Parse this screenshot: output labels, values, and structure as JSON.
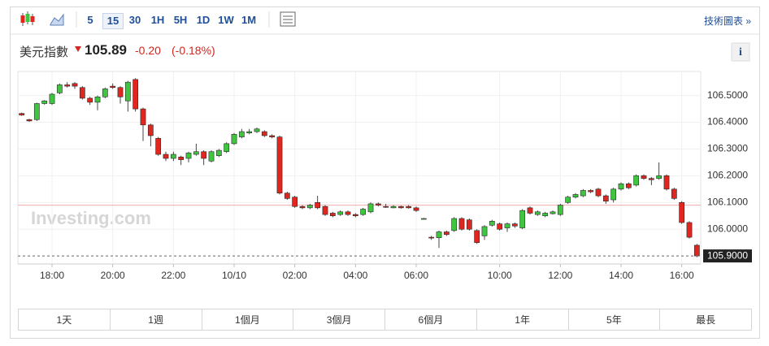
{
  "toolbar": {
    "intervals": [
      "5",
      "15",
      "30",
      "1H",
      "5H",
      "1D",
      "1W",
      "1M"
    ],
    "selected": "15",
    "chart_link": "技術圖表 »"
  },
  "header": {
    "name": "美元指數",
    "price": "105.89",
    "change": "-0.20",
    "change_percent": "(-0.18%)"
  },
  "chart_data": {
    "type": "candlestick",
    "watermark": "Investing.com",
    "categories": [
      null,
      null,
      null,
      null,
      "18:00",
      null,
      null,
      null,
      null,
      null,
      null,
      null,
      "20:00",
      null,
      null,
      null,
      null,
      null,
      null,
      null,
      "22:00",
      null,
      null,
      null,
      null,
      null,
      null,
      null,
      "10/10",
      null,
      null,
      null,
      null,
      null,
      null,
      null,
      "02:00",
      null,
      null,
      null,
      null,
      null,
      null,
      null,
      "04:00",
      null,
      null,
      null,
      null,
      null,
      null,
      null,
      "06:00",
      null,
      null,
      null,
      null,
      null,
      null,
      null,
      null,
      null,
      null,
      "10:00",
      null,
      null,
      null,
      null,
      null,
      null,
      null,
      "12:00",
      null,
      null,
      null,
      null,
      null,
      null,
      null,
      "14:00",
      null,
      null,
      null,
      null,
      null,
      null,
      null,
      "16:00",
      null,
      null
    ],
    "open": [
      106.433,
      106.41,
      106.41,
      106.47,
      106.47,
      106.51,
      106.54,
      106.545,
      106.53,
      106.49,
      106.475,
      106.495,
      106.535,
      106.53,
      106.48,
      106.56,
      106.45,
      106.39,
      106.34,
      106.28,
      106.265,
      106.27,
      106.265,
      106.28,
      106.29,
      106.255,
      106.275,
      106.29,
      106.32,
      106.345,
      106.36,
      106.365,
      106.365,
      106.35,
      106.345,
      106.135,
      106.12,
      106.085,
      106.08,
      106.1,
      106.085,
      106.06,
      106.055,
      106.065,
      106.055,
      106.055,
      106.065,
      106.095,
      106.085,
      106.08,
      106.085,
      106.085,
      106.08,
      106.04,
      105.97,
      105.968,
      105.99,
      105.995,
      106.04,
      106.035,
      105.995,
      105.975,
      106.015,
      106.02,
      106.005,
      106.02,
      106.005,
      106.08,
      106.055,
      106.05,
      106.058,
      106.055,
      106.1,
      106.12,
      106.125,
      106.145,
      106.15,
      106.125,
      106.11,
      106.15,
      106.17,
      106.165,
      106.2,
      106.19,
      106.19,
      106.2,
      106.15,
      106.1,
      106.025,
      105.94
    ],
    "high": [
      106.436,
      106.413,
      106.473,
      106.483,
      106.51,
      106.545,
      106.55,
      106.55,
      106.535,
      106.495,
      106.5,
      106.53,
      106.545,
      106.535,
      106.555,
      106.565,
      106.455,
      106.395,
      106.345,
      106.29,
      106.29,
      106.275,
      106.29,
      106.32,
      106.295,
      106.295,
      106.3,
      106.325,
      106.36,
      106.375,
      106.375,
      106.38,
      106.37,
      106.355,
      106.35,
      106.14,
      106.125,
      106.09,
      106.095,
      106.125,
      106.09,
      106.065,
      106.07,
      106.07,
      106.06,
      106.08,
      106.1,
      106.1,
      106.095,
      106.09,
      106.088,
      106.09,
      106.085,
      106.042,
      105.975,
      105.995,
      105.995,
      106.045,
      106.045,
      106.04,
      106.0,
      106.015,
      106.035,
      106.025,
      106.025,
      106.025,
      106.075,
      106.085,
      106.07,
      106.065,
      106.07,
      106.095,
      106.125,
      106.135,
      106.15,
      106.15,
      106.155,
      106.13,
      106.155,
      106.175,
      106.175,
      106.205,
      106.205,
      106.195,
      106.25,
      106.205,
      106.155,
      106.105,
      106.03,
      105.945
    ],
    "low": [
      106.424,
      106.402,
      106.405,
      106.466,
      106.465,
      106.505,
      106.53,
      106.525,
      106.485,
      106.465,
      106.445,
      106.49,
      106.525,
      106.47,
      106.44,
      106.44,
      106.33,
      106.31,
      106.275,
      106.255,
      106.255,
      106.24,
      106.25,
      106.275,
      106.24,
      106.25,
      106.27,
      106.285,
      106.315,
      106.34,
      106.355,
      106.36,
      106.345,
      106.34,
      106.13,
      106.11,
      106.08,
      106.075,
      106.075,
      106.075,
      106.05,
      106.045,
      106.05,
      106.05,
      106.045,
      106.05,
      106.06,
      106.085,
      106.08,
      106.078,
      106.077,
      106.077,
      106.065,
      106.038,
      105.96,
      105.93,
      105.975,
      105.99,
      105.995,
      105.995,
      105.945,
      105.96,
      106.01,
      105.995,
      105.99,
      106.005,
      106.0,
      106.055,
      106.05,
      106.045,
      106.055,
      106.05,
      106.095,
      106.115,
      106.12,
      106.135,
      106.12,
      106.095,
      106.1,
      106.145,
      106.15,
      106.16,
      106.185,
      106.165,
      106.185,
      106.145,
      106.11,
      106.02,
      105.965,
      105.895
    ],
    "close": [
      106.427,
      106.405,
      106.47,
      106.48,
      106.505,
      106.54,
      106.535,
      106.535,
      106.49,
      106.475,
      106.495,
      106.525,
      106.53,
      106.495,
      106.55,
      106.45,
      106.39,
      106.35,
      106.28,
      106.265,
      106.28,
      106.26,
      106.285,
      106.29,
      106.265,
      106.29,
      106.295,
      106.32,
      106.355,
      106.365,
      106.365,
      106.375,
      106.35,
      106.345,
      106.135,
      106.115,
      106.085,
      106.08,
      106.09,
      106.08,
      106.055,
      106.05,
      106.065,
      106.055,
      106.05,
      106.075,
      106.095,
      106.09,
      106.082,
      106.085,
      106.08,
      106.08,
      106.07,
      106.04,
      105.968,
      105.99,
      105.98,
      106.04,
      106.0,
      106.0,
      105.95,
      106.01,
      106.03,
      106.0,
      106.02,
      106.012,
      106.07,
      106.06,
      106.065,
      106.06,
      106.065,
      106.09,
      106.12,
      106.13,
      106.145,
      106.14,
      106.125,
      106.105,
      106.15,
      106.17,
      106.155,
      106.2,
      106.19,
      106.185,
      106.2,
      106.15,
      106.115,
      106.025,
      105.97,
      105.9
    ],
    "up_color": "#3fc63f",
    "down_color": "#e0261f",
    "ylim": [
      105.87,
      106.59
    ],
    "yticks": [
      {
        "value": 106.0,
        "label": "106.0000"
      },
      {
        "value": 106.1,
        "label": "106.1000"
      },
      {
        "value": 106.2,
        "label": "106.2000"
      },
      {
        "value": 106.3,
        "label": "106.3000"
      },
      {
        "value": 106.4,
        "label": "106.4000"
      },
      {
        "value": 106.5,
        "label": "106.5000"
      }
    ],
    "previous_close": 106.09,
    "last_price": {
      "value": 105.9,
      "label": "105.9000"
    },
    "grid": true
  },
  "ranges": [
    "1天",
    "1週",
    "1個月",
    "3個月",
    "6個月",
    "1年",
    "5年",
    "最長"
  ]
}
